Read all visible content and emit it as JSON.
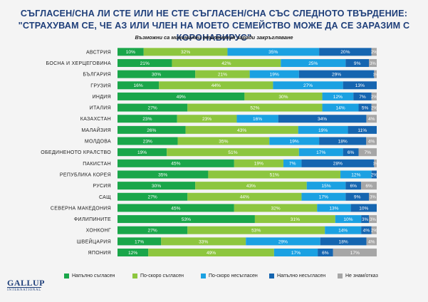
{
  "header": {
    "title_line1": "СЪГЛАСЕН/СНА ЛИ СТЕ ИЛИ НЕ СТЕ СЪГЛАСЕН/СНА СЪС СЛЕДНОТО ТВЪРДЕНИЕ:",
    "title_line2": "\"СТРАХУВАМ СЕ, ЧЕ АЗ ИЛИ ЧЛЕН НА МОЕТО СЕМЕЙСТВО МОЖЕ ДА СЕ ЗАРАЗИМ С КОРОНАВИРУС\"",
    "subtitle": "Възможни са минимални отклонения заради закръгляване"
  },
  "logo": {
    "main": "GALLUP",
    "sub": "INTERNATIONAL"
  },
  "colors": {
    "strong_agree": "#1aa64a",
    "agree": "#8dc63f",
    "disagree": "#1ba1e2",
    "strong_disagree": "#1565b0",
    "dont_know": "#a6a6a6",
    "title": "#1f3f7a"
  },
  "chart_data": {
    "type": "bar",
    "orientation": "horizontal",
    "stacked": true,
    "title": "СЪГЛАСЕН/СНА ЛИ СТЕ ИЛИ НЕ СТЕ СЪГЛАСЕН/СНА СЪС СЛЕДНОТО ТВЪРДЕНИЕ: \"СТРАХУВАМ СЕ, ЧЕ АЗ ИЛИ ЧЛЕН НА МОЕТО СЕМЕЙСТВО МОЖЕ ДА СЕ ЗАРАЗИМ С КОРОНАВИРУС\"",
    "xlim": [
      0,
      100
    ],
    "value_suffix": "%",
    "legend_position": "bottom",
    "categories": [
      "АВСТРИЯ",
      "БОСНА И ХЕРЦЕГОВИНА",
      "БЪЛГАРИЯ",
      "ГРУЗИЯ",
      "ИНДИЯ",
      "ИТАЛИЯ",
      "КАЗАХСТАН",
      "МАЛАЙЗИЯ",
      "МОЛДОВА",
      "ОБЕДИНЕНОТО КРАЛСТВО",
      "ПАКИСТАН",
      "РЕПУБЛИКА КОРЕЯ",
      "РУСИЯ",
      "САЩ",
      "СЕВЕРНА МАКЕДОНИЯ",
      "ФИЛИПИНИТЕ",
      "ХОНКОНГ",
      "ШВЕЙЦАРИЯ",
      "ЯПОНИЯ"
    ],
    "series": [
      {
        "name": "Напълно съгласен",
        "color_key": "strong_agree",
        "values": [
          10,
          21,
          30,
          16,
          49,
          27,
          23,
          26,
          23,
          19,
          45,
          35,
          30,
          27,
          45,
          53,
          27,
          17,
          12
        ]
      },
      {
        "name": "По-скоро съгласен",
        "color_key": "agree",
        "values": [
          32,
          42,
          21,
          44,
          30,
          52,
          23,
          43,
          35,
          51,
          19,
          51,
          43,
          44,
          32,
          31,
          53,
          33,
          49
        ]
      },
      {
        "name": "По-скоро несъгласен",
        "color_key": "disagree",
        "values": [
          35,
          25,
          19,
          27,
          12,
          14,
          16,
          19,
          19,
          17,
          7,
          12,
          15,
          17,
          13,
          10,
          14,
          29,
          17
        ]
      },
      {
        "name": "Напълно несъгласен",
        "color_key": "strong_disagree",
        "values": [
          20,
          9,
          29,
          13,
          7,
          5,
          34,
          11,
          18,
          6,
          28,
          2,
          6,
          9,
          10,
          3,
          4,
          18,
          6
        ]
      },
      {
        "name": "Не знам/отказ",
        "color_key": "dont_know",
        "values": [
          2,
          3,
          1,
          0,
          2,
          2,
          4,
          0,
          4,
          7,
          1,
          0,
          6,
          3,
          0,
          3,
          2,
          4,
          17
        ]
      }
    ]
  }
}
